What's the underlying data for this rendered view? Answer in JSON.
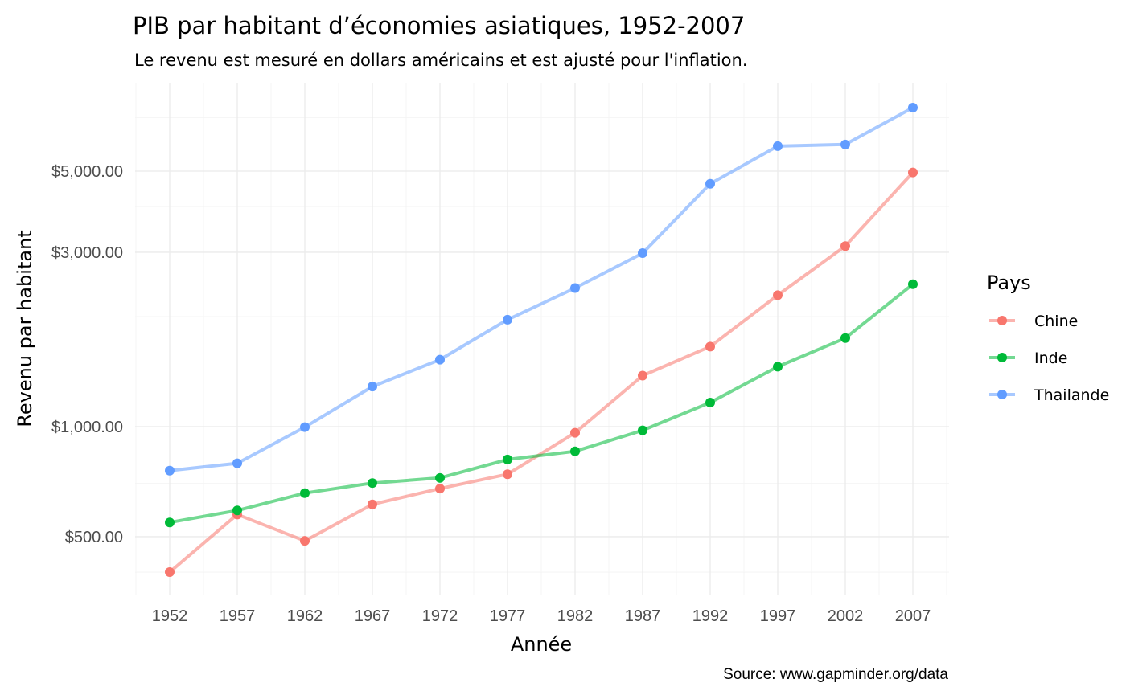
{
  "chart_data": {
    "type": "line",
    "title": "PIB par habitant d’économies asiatiques, 1952-2007",
    "subtitle": "Le revenu est mesuré en dollars américains et est ajusté pour l'inflation.",
    "xlabel": "Année",
    "ylabel": "Revenu par habitant",
    "caption": "Source: www.gapminder.org/data",
    "x": [
      1952,
      1957,
      1962,
      1967,
      1972,
      1977,
      1982,
      1987,
      1992,
      1997,
      2002,
      2007
    ],
    "x_tick_labels": [
      "1952",
      "1957",
      "1962",
      "1967",
      "1972",
      "1977",
      "1982",
      "1987",
      "1992",
      "1997",
      "2002",
      "2007"
    ],
    "y_scale": "log",
    "ylim": [
      350,
      7900
    ],
    "y_ticks": [
      500,
      1000,
      3000,
      5000
    ],
    "y_tick_labels": [
      "$500.00",
      "$1,000.00",
      "$3,000.00",
      "$5,000.00"
    ],
    "grid": true,
    "legend": {
      "title": "Pays",
      "position": "right"
    },
    "series": [
      {
        "name": "Chine",
        "color": "#F8766D",
        "values": [
          400,
          575,
          487,
          613,
          677,
          741,
          962,
          1379,
          1656,
          2289,
          3119,
          4959
        ]
      },
      {
        "name": "Inde",
        "color": "#00BA38",
        "values": [
          547,
          590,
          658,
          701,
          724,
          813,
          856,
          977,
          1164,
          1459,
          1747,
          2452
        ]
      },
      {
        "name": "Thailande",
        "color": "#619CFF",
        "values": [
          758,
          794,
          997,
          1287,
          1525,
          1961,
          2394,
          2983,
          4617,
          5853,
          5914,
          7458
        ]
      }
    ]
  }
}
